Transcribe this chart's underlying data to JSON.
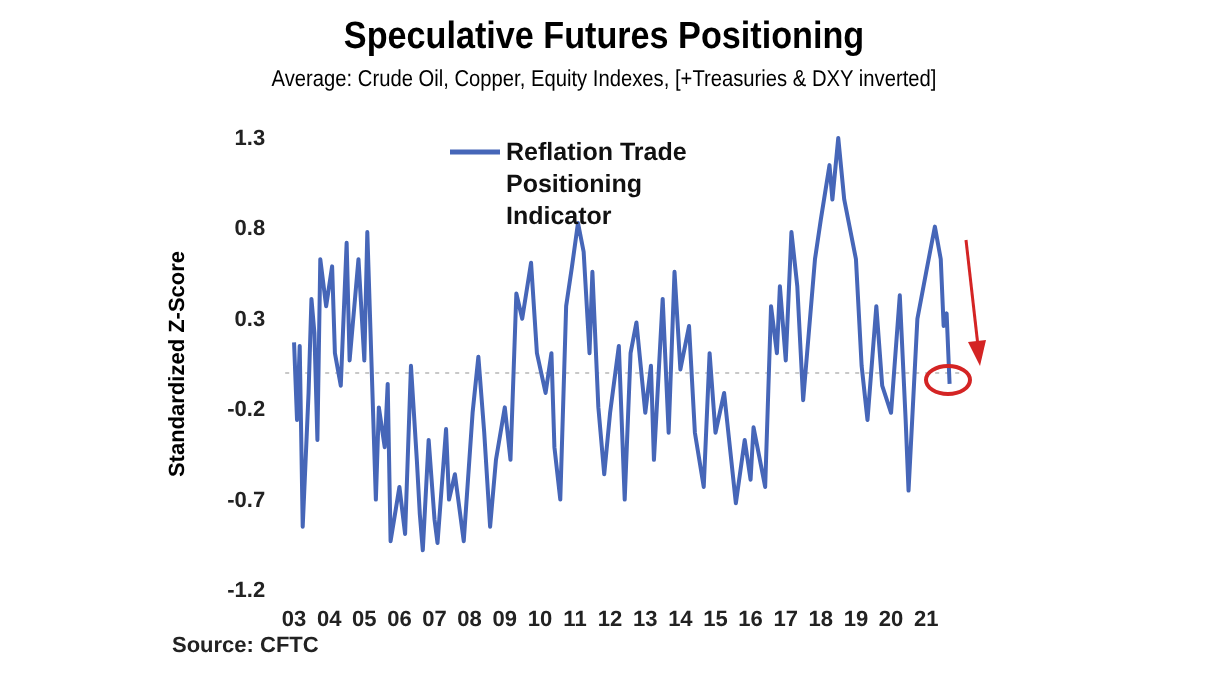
{
  "chart_data": {
    "type": "line",
    "title": "Speculative Futures Positioning",
    "subtitle": "Average: Crude Oil, Copper, Equity Indexes, [+Treasuries & DXY inverted]",
    "ylabel": "Standardized Z-Score",
    "annotations": [
      "Source: CFTC"
    ],
    "legend": "top",
    "grid": false,
    "marker": "none",
    "line_style": "solid",
    "xlim": [
      "2002-10",
      "2022-03"
    ],
    "xticks": [
      {
        "value": "2003",
        "label": "03"
      },
      {
        "value": "2004",
        "label": "04"
      },
      {
        "value": "2005",
        "label": "05"
      },
      {
        "value": "2006",
        "label": "06"
      },
      {
        "value": "2007",
        "label": "07"
      },
      {
        "value": "2008",
        "label": "08"
      },
      {
        "value": "2009",
        "label": "09"
      },
      {
        "value": "2010",
        "label": "10"
      },
      {
        "value": "2011",
        "label": "11"
      },
      {
        "value": "2012",
        "label": "12"
      },
      {
        "value": "2013",
        "label": "13"
      },
      {
        "value": "2014",
        "label": "14"
      },
      {
        "value": "2015",
        "label": "15"
      },
      {
        "value": "2016",
        "label": "16"
      },
      {
        "value": "2017",
        "label": "17"
      },
      {
        "value": "2018",
        "label": "18"
      },
      {
        "value": "2019",
        "label": "19"
      },
      {
        "value": "2020",
        "label": "20"
      },
      {
        "value": "2021",
        "label": "21"
      }
    ],
    "ylim": [
      -1.2,
      1.3
    ],
    "yticks": [
      -1.2,
      -0.7,
      -0.2,
      0.3,
      0.8,
      1.3
    ],
    "ref_lines": [
      {
        "axis": "y",
        "value": 0,
        "color": "#c8c8c8",
        "line_style": "dotted"
      }
    ],
    "x": [
      "2003-01",
      "2003-02",
      "2003-03",
      "2003-04",
      "2003-06",
      "2003-07",
      "2003-08",
      "2003-09",
      "2003-10",
      "2003-12",
      "2004-02",
      "2004-03",
      "2004-05",
      "2004-07",
      "2004-08",
      "2004-11",
      "2005-01",
      "2005-02",
      "2005-05",
      "2005-06",
      "2005-08",
      "2005-09",
      "2005-10",
      "2006-01",
      "2006-03",
      "2006-05",
      "2006-07",
      "2006-08",
      "2006-09",
      "2006-11",
      "2007-01",
      "2007-02",
      "2007-05",
      "2007-06",
      "2007-08",
      "2007-11",
      "2008-02",
      "2008-04",
      "2008-06",
      "2008-08",
      "2008-10",
      "2009-01",
      "2009-03",
      "2009-05",
      "2009-07",
      "2009-10",
      "2009-12",
      "2010-03",
      "2010-05",
      "2010-06",
      "2010-08",
      "2010-10",
      "2010-12",
      "2011-02",
      "2011-04",
      "2011-06",
      "2011-07",
      "2011-09",
      "2011-11",
      "2012-01",
      "2012-04",
      "2012-06",
      "2012-08",
      "2012-10",
      "2013-01",
      "2013-03",
      "2013-04",
      "2013-07",
      "2013-09",
      "2013-11",
      "2014-01",
      "2014-04",
      "2014-06",
      "2014-09",
      "2014-11",
      "2015-01",
      "2015-04",
      "2015-08",
      "2015-11",
      "2016-01",
      "2016-02",
      "2016-06",
      "2016-08",
      "2016-10",
      "2016-11",
      "2017-01",
      "2017-03",
      "2017-05",
      "2017-07",
      "2017-11",
      "2018-01",
      "2018-04",
      "2018-05",
      "2018-07",
      "2018-09",
      "2019-01",
      "2019-03",
      "2019-05",
      "2019-08",
      "2019-10",
      "2020-01",
      "2020-04",
      "2020-06",
      "2020-07",
      "2020-10",
      "2021-01",
      "2021-04",
      "2021-06",
      "2021-07",
      "2021-08",
      "2021-09"
    ],
    "series": [
      {
        "name": "Reflation Trade Positioning Indicator",
        "color": "#4666b8",
        "values": [
          0.17,
          -0.26,
          0.15,
          -0.85,
          -0.11,
          0.41,
          0.22,
          -0.37,
          0.63,
          0.37,
          0.59,
          0.11,
          -0.07,
          0.72,
          0.07,
          0.63,
          0.07,
          0.78,
          -0.7,
          -0.19,
          -0.41,
          -0.06,
          -0.93,
          -0.63,
          -0.89,
          0.04,
          -0.48,
          -0.78,
          -0.98,
          -0.37,
          -0.81,
          -0.94,
          -0.31,
          -0.7,
          -0.56,
          -0.93,
          -0.22,
          0.09,
          -0.33,
          -0.85,
          -0.48,
          -0.19,
          -0.48,
          0.44,
          0.3,
          0.61,
          0.11,
          -0.11,
          0.11,
          -0.41,
          -0.7,
          0.37,
          0.59,
          0.83,
          0.67,
          0.11,
          0.56,
          -0.19,
          -0.56,
          -0.22,
          0.15,
          -0.7,
          0.11,
          0.28,
          -0.22,
          0.04,
          -0.48,
          0.41,
          -0.33,
          0.56,
          0.02,
          0.26,
          -0.33,
          -0.63,
          0.11,
          -0.33,
          -0.11,
          -0.72,
          -0.37,
          -0.59,
          -0.3,
          -0.63,
          0.37,
          0.11,
          0.48,
          0.07,
          0.78,
          0.48,
          -0.15,
          0.63,
          0.85,
          1.15,
          0.96,
          1.3,
          0.96,
          0.63,
          0.04,
          -0.26,
          0.37,
          -0.07,
          -0.22,
          0.43,
          -0.26,
          -0.65,
          0.3,
          0.56,
          0.81,
          0.63,
          0.26,
          0.33,
          -0.06
        ]
      }
    ]
  }
}
